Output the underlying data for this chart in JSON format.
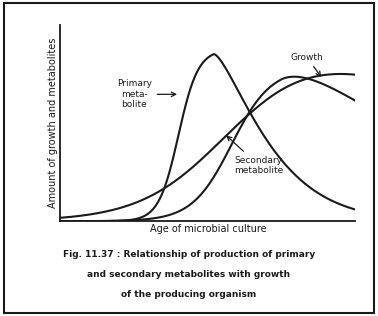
{
  "title_line1": "Fig. 11.37 : Relationship of production of primary",
  "title_line2": "and secondary metabolites with growth",
  "title_line3": "of the producing organism",
  "xlabel": "Age of microbial culture",
  "ylabel": "Amount of growth and metabolites",
  "bg_color": "#ffffff",
  "line_color": "#1a1a1a",
  "label_growth": "Growth",
  "label_primary": "Primary\nmeta-\nbolite",
  "label_secondary": "Secondary\nmetabolite",
  "fig_width": 3.78,
  "fig_height": 3.16
}
